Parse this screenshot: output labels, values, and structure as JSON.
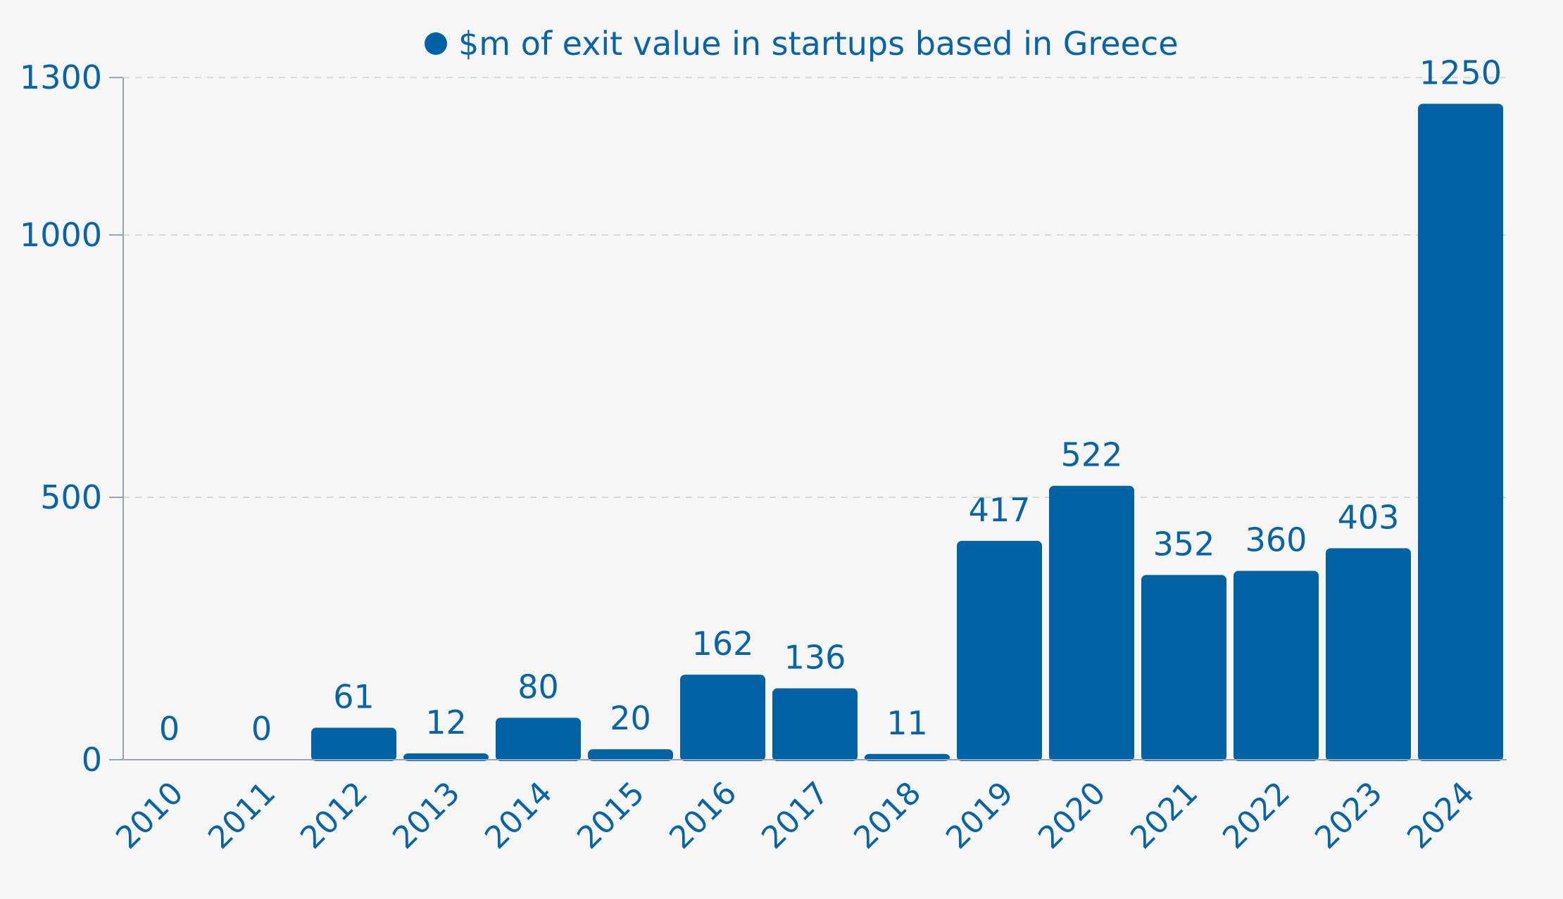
{
  "chart_data": {
    "type": "bar",
    "legend": {
      "label": "$m of exit value in startups based in Greece",
      "placement": "top-center"
    },
    "categories": [
      "2010",
      "2011",
      "2012",
      "2013",
      "2014",
      "2015",
      "2016",
      "2017",
      "2018",
      "2019",
      "2020",
      "2021",
      "2022",
      "2023",
      "2024"
    ],
    "series": [
      {
        "name": "$m of exit value in startups based in Greece",
        "values": [
          0,
          0,
          61,
          12,
          80,
          20,
          162,
          136,
          11,
          417,
          522,
          352,
          360,
          403,
          1250
        ],
        "value_labels": [
          "0",
          "0",
          "61",
          "12",
          "80",
          "20",
          "162",
          "136",
          "11",
          "417",
          "522",
          "352",
          "360",
          "403",
          "1250"
        ]
      }
    ],
    "y_axis": {
      "ticks": [
        0,
        500,
        1000,
        1300
      ],
      "tick_labels": [
        "0",
        "500",
        "1000",
        "1300"
      ],
      "grid": "dashed"
    },
    "x_axis": {
      "tick_rotation_deg": -45
    },
    "colors": {
      "bar": "#0262a6",
      "text": "#0864a8",
      "grid": "#d9d9d9",
      "axis": "#9aa4ae",
      "background": "#f6f6f6"
    }
  }
}
